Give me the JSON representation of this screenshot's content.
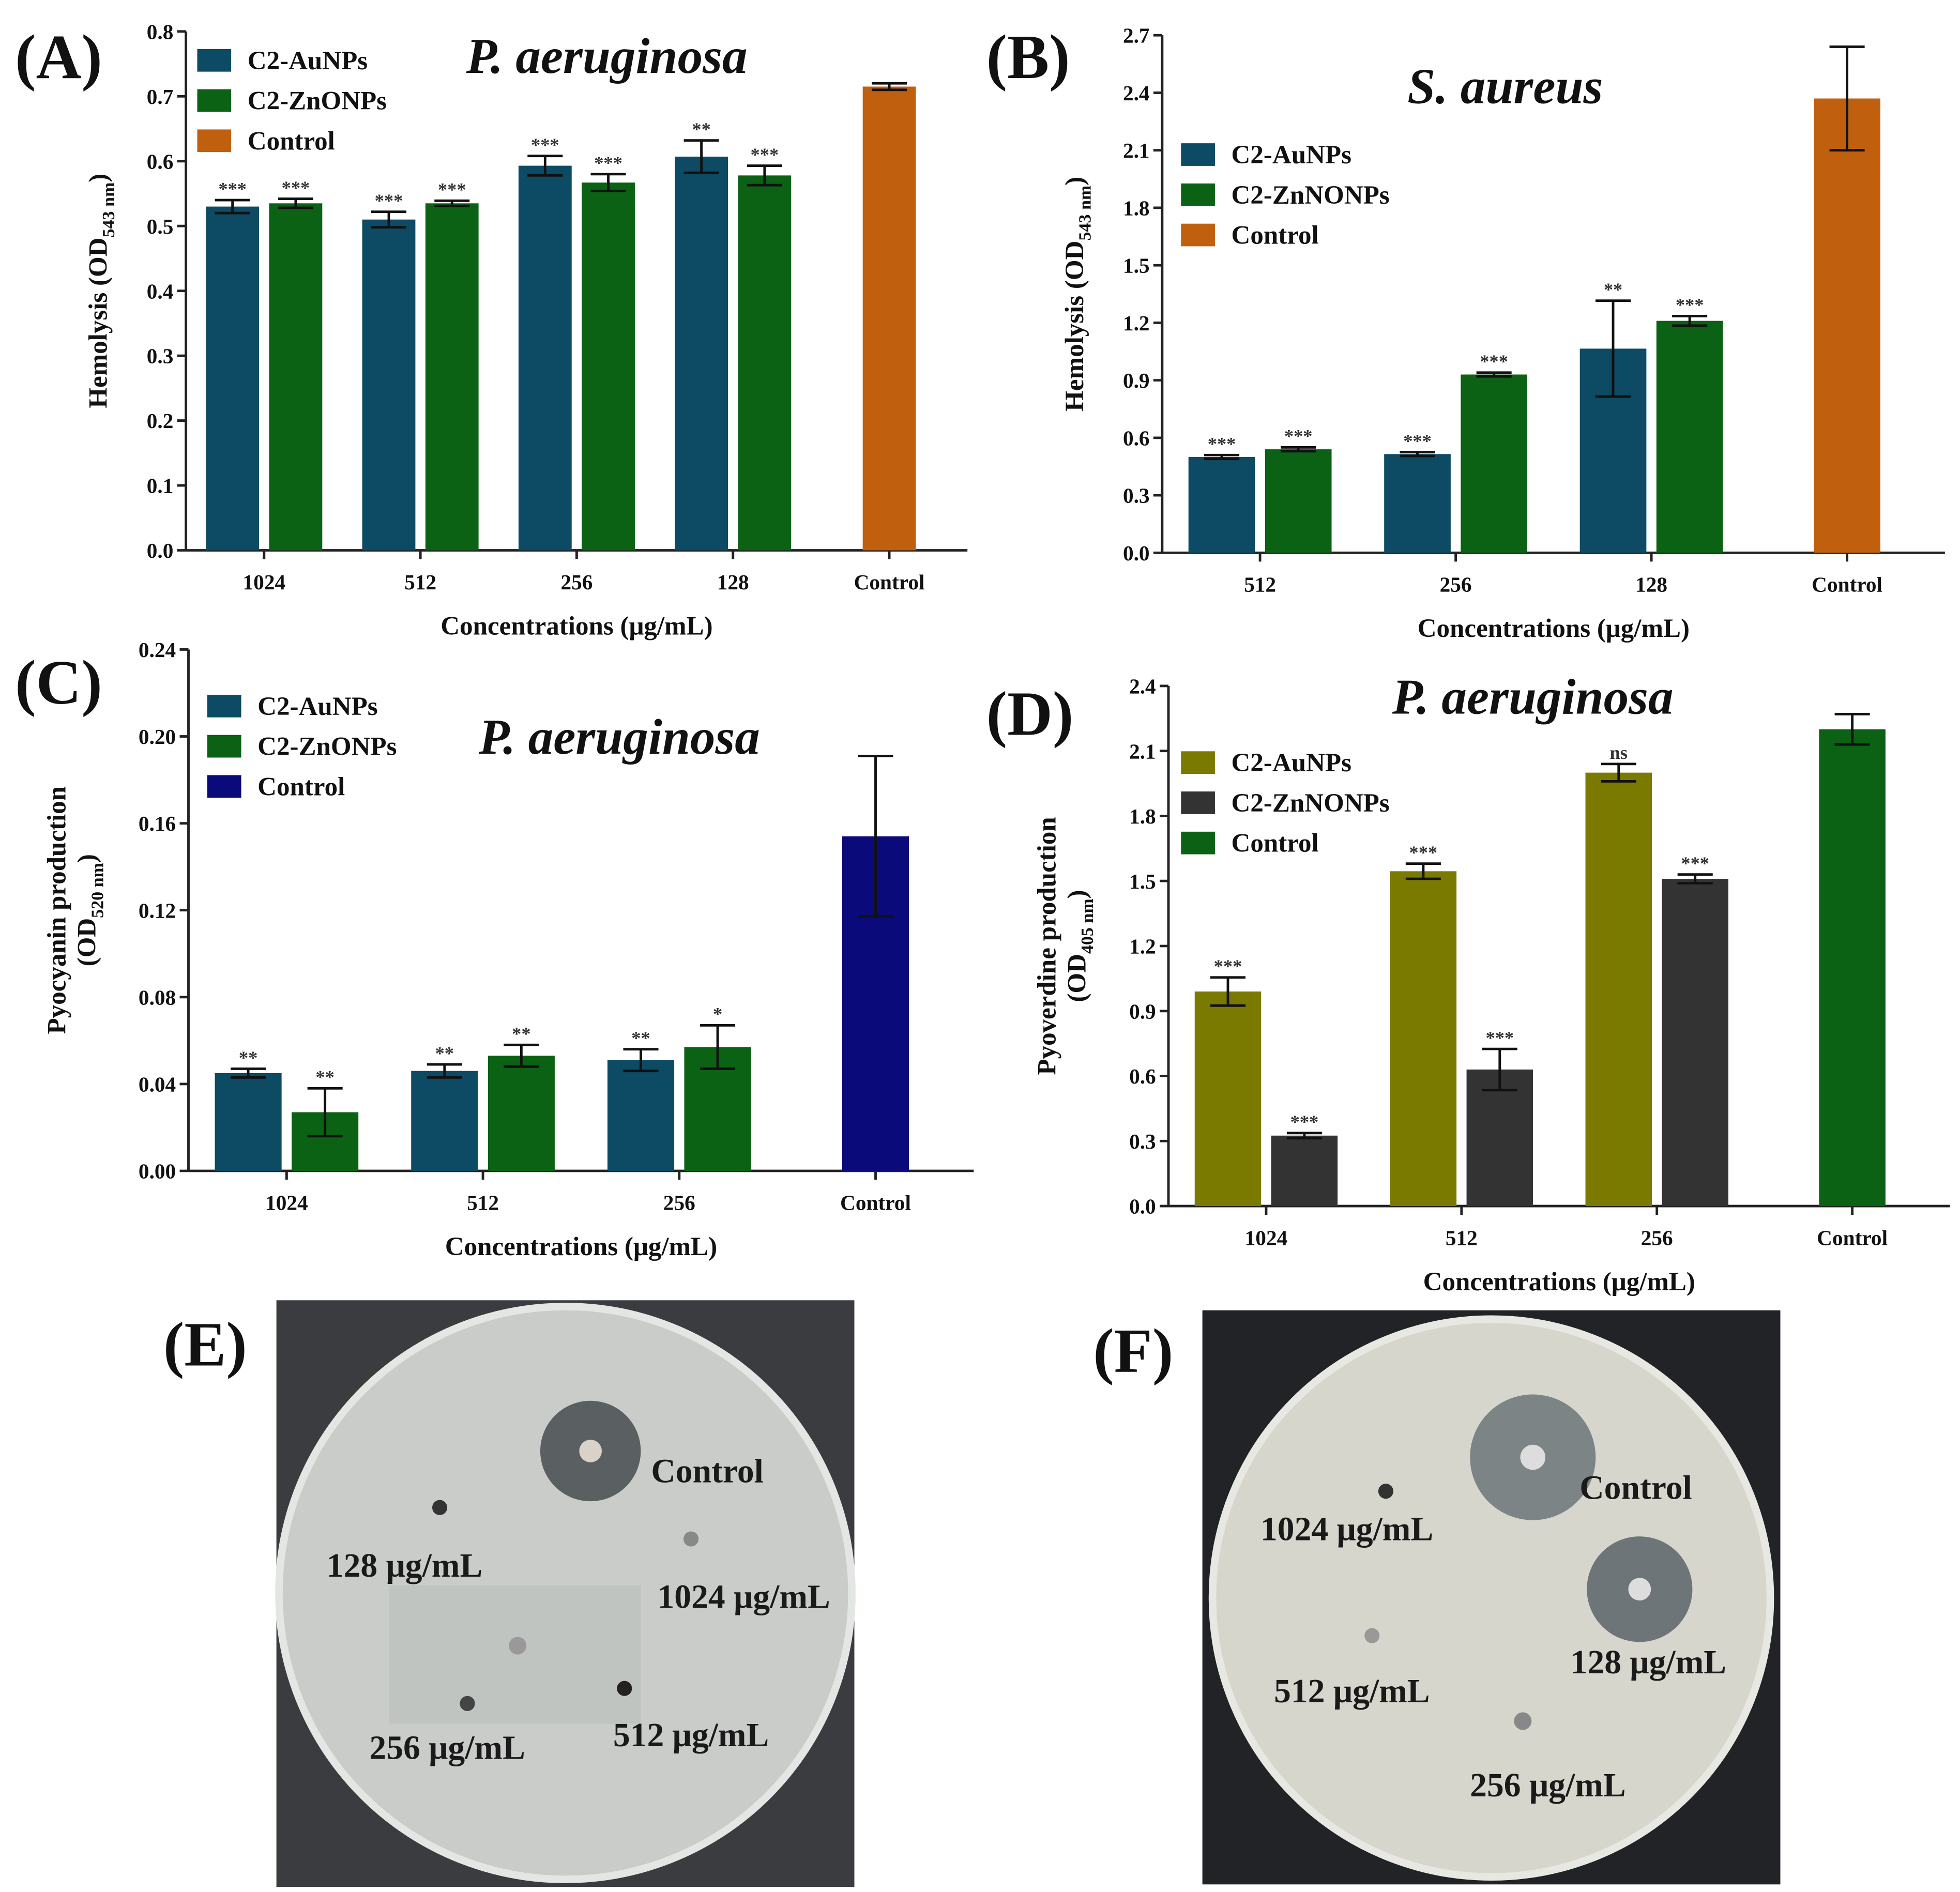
{
  "chart_data": [
    {
      "type": "bar",
      "panel": "(A)",
      "title": "P. aeruginosa",
      "ylabel": {
        "text": "Hemolysis (OD",
        "sub": "543 nm",
        "end": ")"
      },
      "xlabel": "Concentrations (μg/mL)",
      "categories": [
        "1024",
        "512",
        "256",
        "128",
        "Control"
      ],
      "ylim": [
        0,
        0.8
      ],
      "yticks": [
        {
          "value": 0,
          "label": "0.0"
        },
        0.1,
        0.2,
        0.3,
        0.4,
        0.5,
        0.6,
        0.7,
        0.8
      ],
      "legend": "upper left",
      "series": [
        {
          "name": "C2-AuNPs",
          "color": "#0d4a63",
          "values": [
            0.53,
            0.51,
            0.593,
            0.607,
            null
          ],
          "errors": [
            0.01,
            0.012,
            0.015,
            0.025,
            null
          ],
          "significance": [
            "***",
            "***",
            "***",
            "**",
            null
          ]
        },
        {
          "name": "C2-ZnONPs",
          "color": "#0b6114",
          "values": [
            0.535,
            0.535,
            0.567,
            0.578,
            null
          ],
          "errors": [
            0.007,
            0.004,
            0.013,
            0.015,
            null
          ],
          "significance": [
            "***",
            "***",
            "***",
            "***",
            null
          ]
        },
        {
          "name": "Control",
          "color": "#c0600f",
          "values": [
            null,
            null,
            null,
            null,
            0.715
          ],
          "errors": [
            null,
            null,
            null,
            null,
            0.005
          ],
          "significance": [
            null,
            null,
            null,
            null,
            null
          ]
        }
      ]
    },
    {
      "type": "bar",
      "panel": "(B)",
      "title": "S. aureus",
      "ylabel": {
        "text": "Hemolysis (OD",
        "sub": "543 nm",
        "end": ")"
      },
      "xlabel": "Concentrations (μg/mL)",
      "categories": [
        "512",
        "256",
        "128",
        "Control"
      ],
      "ylim": [
        0,
        2.7
      ],
      "yticks": [
        {
          "value": 0,
          "label": "0.0"
        },
        0.3,
        0.6,
        0.9,
        1.2,
        1.5,
        1.8,
        2.1,
        2.4,
        2.7
      ],
      "legend": "upper left",
      "series": [
        {
          "name": "C2-AuNPs",
          "color": "#0d4a63",
          "values": [
            0.5,
            0.515,
            1.065,
            null
          ],
          "errors": [
            0.01,
            0.01,
            0.25,
            null
          ],
          "significance": [
            "***",
            "***",
            "**",
            null
          ]
        },
        {
          "name": "C2-ZnNONPs",
          "color": "#0b6114",
          "values": [
            0.54,
            0.93,
            1.21,
            null
          ],
          "errors": [
            0.01,
            0.01,
            0.025,
            null
          ],
          "significance": [
            "***",
            "***",
            "***",
            null
          ]
        },
        {
          "name": "Control",
          "color": "#c0600f",
          "values": [
            null,
            null,
            null,
            2.37
          ],
          "errors": [
            null,
            null,
            null,
            0.27
          ],
          "significance": [
            null,
            null,
            null,
            null
          ]
        }
      ]
    },
    {
      "type": "bar",
      "panel": "(C)",
      "title": "P. aeruginosa",
      "ylabel_top": "Pyocyanin production",
      "ylabel": {
        "text": "(OD",
        "sub": "520 nm",
        "end": ")"
      },
      "xlabel": "Concentrations (μg/mL)",
      "categories": [
        "1024",
        "512",
        "256",
        "Control"
      ],
      "ylim": [
        0,
        0.24
      ],
      "yticks": [
        {
          "value": 0,
          "label": "0.00"
        },
        0.04,
        0.08,
        0.12,
        0.16,
        {
          "value": 0.2,
          "label": "0.20"
        },
        0.24
      ],
      "legend": "upper left",
      "series": [
        {
          "name": "C2-AuNPs",
          "color": "#0d4a63",
          "values": [
            0.045,
            0.046,
            0.051,
            null
          ],
          "errors": [
            0.002,
            0.003,
            0.005,
            null
          ],
          "significance": [
            "**",
            "**",
            "**",
            null
          ]
        },
        {
          "name": "C2-ZnONPs",
          "color": "#0b6114",
          "values": [
            0.027,
            0.053,
            0.057,
            null
          ],
          "errors": [
            0.011,
            0.005,
            0.01,
            null
          ],
          "significance": [
            "**",
            "**",
            "*",
            null
          ]
        },
        {
          "name": "Control",
          "color": "#0a0a7a",
          "values": [
            null,
            null,
            null,
            0.154
          ],
          "errors": [
            null,
            null,
            null,
            0.037
          ],
          "significance": [
            null,
            null,
            null,
            null
          ]
        }
      ]
    },
    {
      "type": "bar",
      "panel": "(D)",
      "title": "P. aeruginosa",
      "ylabel_top": "Pyoverdine production",
      "ylabel": {
        "text": "(OD",
        "sub": "405 nm",
        "end": ")"
      },
      "xlabel": "Concentrations (μg/mL)",
      "categories": [
        "1024",
        "512",
        "256",
        "Control"
      ],
      "ylim": [
        0,
        2.4
      ],
      "yticks": [
        {
          "value": 0,
          "label": "0.0"
        },
        0.3,
        0.6,
        0.9,
        1.2,
        1.5,
        1.8,
        2.1,
        2.4
      ],
      "legend": "upper left",
      "series": [
        {
          "name": "C2-AuNPs",
          "color": "#7a7a00",
          "values": [
            0.99,
            1.545,
            2.0,
            null
          ],
          "errors": [
            0.065,
            0.035,
            0.04,
            null
          ],
          "significance": [
            "***",
            "***",
            "ns",
            null
          ]
        },
        {
          "name": "C2-ZnNONPs",
          "color": "#333333",
          "values": [
            0.325,
            0.63,
            1.51,
            null
          ],
          "errors": [
            0.012,
            0.095,
            0.02,
            null
          ],
          "significance": [
            "***",
            "***",
            "***",
            null
          ]
        },
        {
          "name": "Control",
          "color": "#0b6114",
          "values": [
            null,
            null,
            null,
            2.2
          ],
          "errors": [
            null,
            null,
            null,
            0.07
          ],
          "significance": [
            null,
            null,
            null,
            null
          ]
        }
      ]
    }
  ],
  "photos": [
    {
      "panel": "(E)",
      "labels": [
        "Control",
        "128 μg/mL",
        "1024 μg/mL",
        "256 μg/mL",
        "512 μg/mL"
      ]
    },
    {
      "panel": "(F)",
      "labels": [
        "Control",
        "1024 μg/mL",
        "128 μg/mL",
        "512 μg/mL",
        "256 μg/mL"
      ]
    }
  ]
}
